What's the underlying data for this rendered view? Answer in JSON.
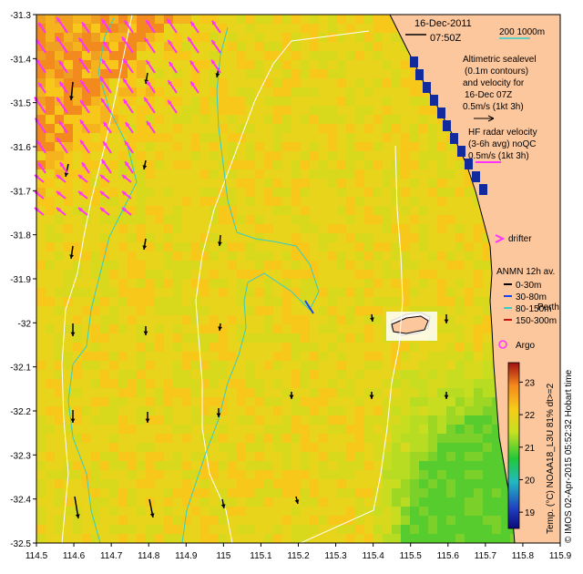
{
  "header": {
    "date": "16-Dec-2011",
    "time": "07:50Z",
    "scale_label": "200  1000m"
  },
  "legend": {
    "altimetric": [
      "Altimetric sealevel",
      "(0.1m contours)",
      "and velocity for",
      "16-Dec 07Z",
      "0.5m/s (1kt 3h)"
    ],
    "hf_radar": [
      "HF radar velocity",
      "(3-6h avg) noQC",
      "0.5m/s (1kt 3h)"
    ],
    "drifter": "drifter",
    "anmn_title": "ANMN 12h av.",
    "anmn_items": [
      "0-30m",
      "30-80m",
      "80-150m",
      "150-300m"
    ],
    "argo": "Argo",
    "place": "Perth"
  },
  "axes": {
    "x_ticks": [
      "114.5",
      "114.6",
      "114.7",
      "114.8",
      "114.9",
      "115",
      "115.1",
      "115.2",
      "115.3",
      "115.4",
      "115.5",
      "115.6",
      "115.7",
      "115.8",
      "115.9"
    ],
    "y_ticks": [
      "-31.3",
      "-31.4",
      "-31.5",
      "-31.6",
      "-31.7",
      "-31.8",
      "-31.9",
      "-32",
      "-32.1",
      "-32.2",
      "-32.3",
      "-32.4",
      "-32.5"
    ]
  },
  "colorbar": {
    "label": "Temp. (°C) NOAA18_L3U 81% dt>=2",
    "ticks": [
      "19",
      "20",
      "21",
      "22",
      "23"
    ],
    "min": 18.5,
    "max": 23.6
  },
  "credit": "© IMOS 02-Apr-2015 05:52:32 Hobart time",
  "colors": {
    "land": "#fdc79e",
    "warm": "#f58a1e",
    "mid": "#f7d21a",
    "cool": "#2ed12e",
    "cold": "#122a9c",
    "altimetry_arrow": "#000000",
    "hf_arrow": "#ff33ff",
    "bathy_200m": "#33cccc",
    "bathy_1000m": "#ffffff"
  }
}
